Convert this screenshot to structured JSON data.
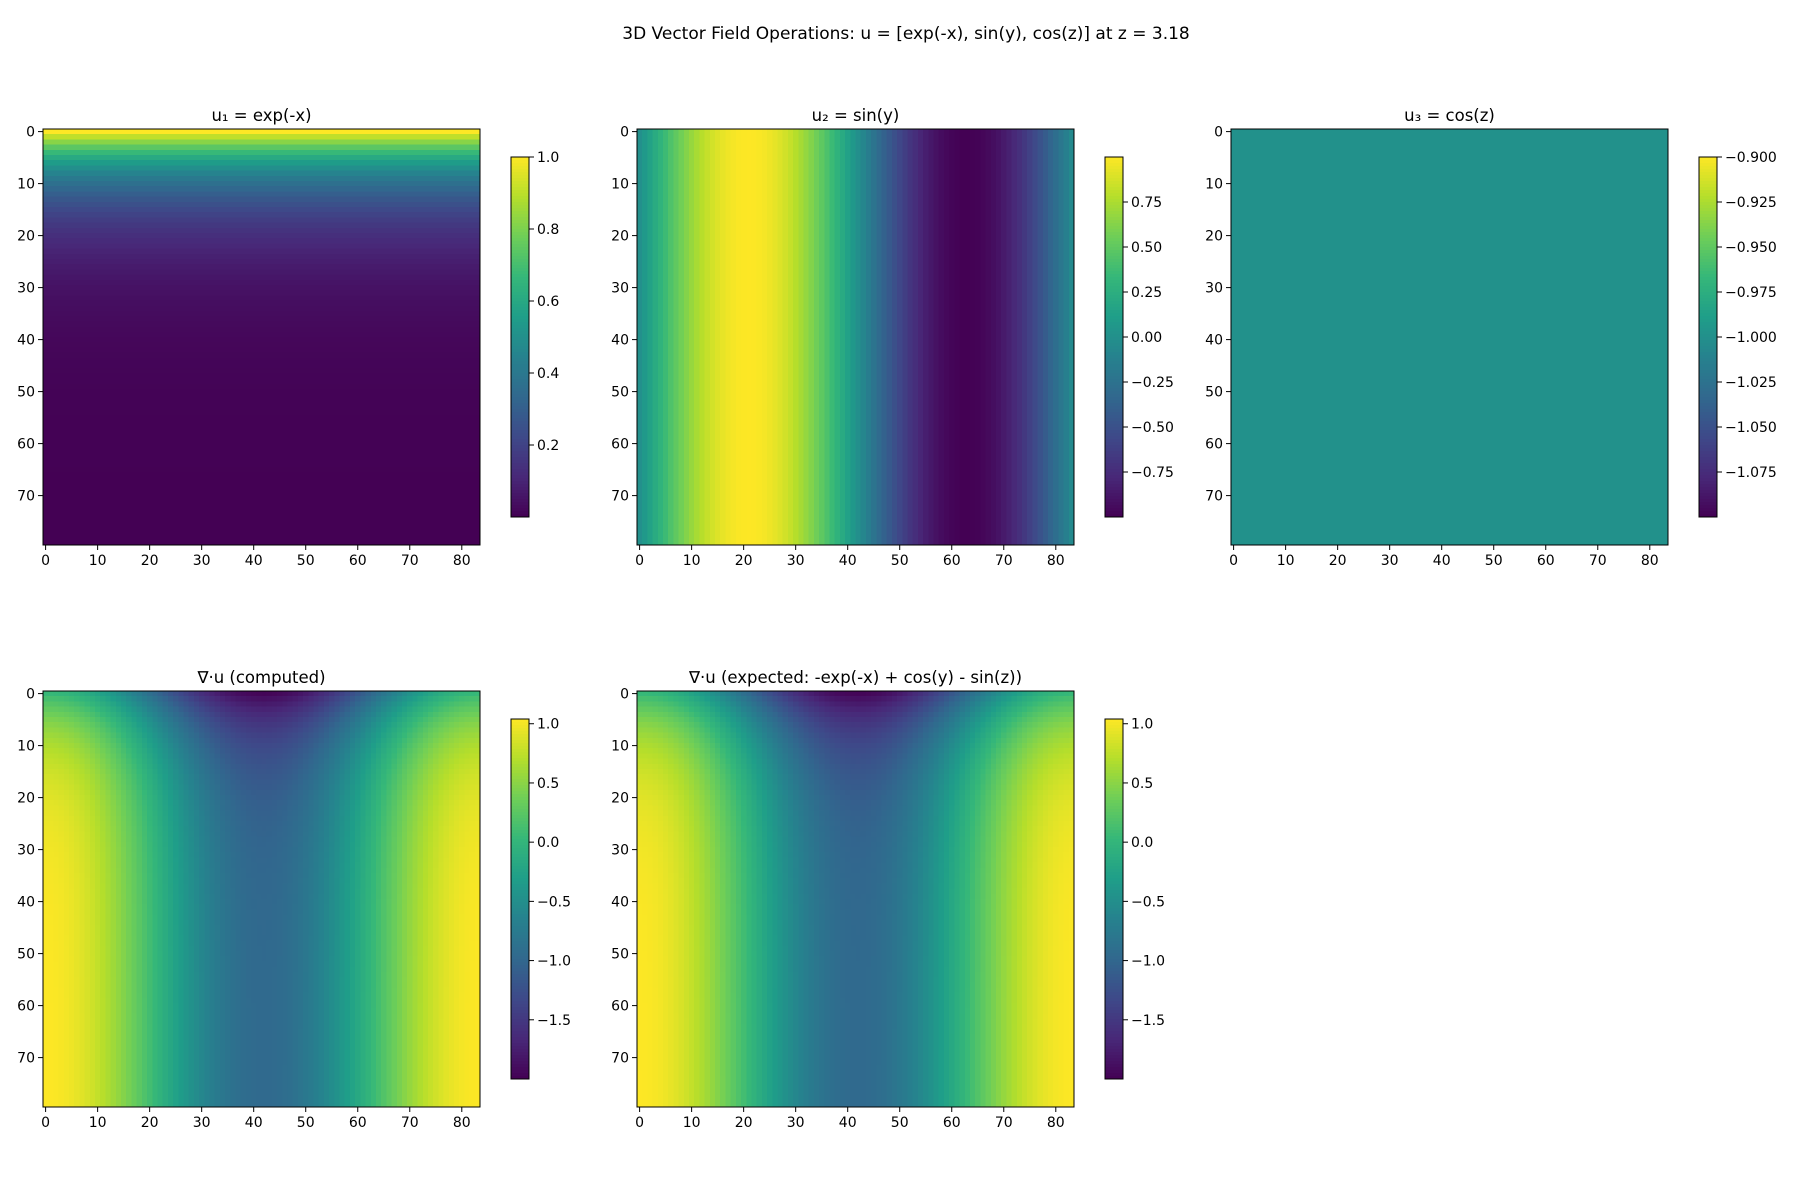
{
  "figure": {
    "title": "3D Vector Field Operations: u = [exp(-x), sin(y), cos(z)] at z = 3.18"
  },
  "colormap": {
    "name": "viridis",
    "stops": [
      "#440154",
      "#482878",
      "#3e4989",
      "#31688e",
      "#26828e",
      "#1f9e89",
      "#35b779",
      "#6ece58",
      "#b5de2b",
      "#fde725"
    ]
  },
  "chart_data": [
    {
      "type": "heatmap",
      "title": "u₁ = exp(-x)",
      "field": "exp(-x)",
      "x": {
        "n": 84,
        "ticks": [
          0,
          10,
          20,
          30,
          40,
          50,
          60,
          70,
          80
        ]
      },
      "y": {
        "n": 80,
        "ticks": [
          0,
          10,
          20,
          30,
          40,
          50,
          60,
          70
        ]
      },
      "vmin": 0.0,
      "vmax": 1.0,
      "colorbar_ticks": [
        "1.0",
        "0.8",
        "0.6",
        "0.4",
        "0.2"
      ],
      "colorbar_tick_values": [
        1.0,
        0.8,
        0.6,
        0.4,
        0.2
      ]
    },
    {
      "type": "heatmap",
      "title": "u₂ = sin(y)",
      "field": "sin(y)",
      "x": {
        "n": 84,
        "ticks": [
          0,
          10,
          20,
          30,
          40,
          50,
          60,
          70,
          80
        ]
      },
      "y": {
        "n": 80,
        "ticks": [
          0,
          10,
          20,
          30,
          40,
          50,
          60,
          70
        ]
      },
      "vmin": -1.0,
      "vmax": 1.0,
      "colorbar_ticks": [
        "0.75",
        "0.50",
        "0.25",
        "0.00",
        "−0.25",
        "−0.50",
        "−0.75"
      ],
      "colorbar_tick_values": [
        0.75,
        0.5,
        0.25,
        0.0,
        -0.25,
        -0.5,
        -0.75
      ]
    },
    {
      "type": "heatmap",
      "title": "u₃ = cos(z)",
      "field": "cos(z)",
      "constant_value": -0.9995,
      "x": {
        "n": 84,
        "ticks": [
          0,
          10,
          20,
          30,
          40,
          50,
          60,
          70,
          80
        ]
      },
      "y": {
        "n": 80,
        "ticks": [
          0,
          10,
          20,
          30,
          40,
          50,
          60,
          70
        ]
      },
      "vmin": -1.1,
      "vmax": -0.9,
      "colorbar_ticks": [
        "−0.900",
        "−0.925",
        "−0.950",
        "−0.975",
        "−1.000",
        "−1.025",
        "−1.050",
        "−1.075"
      ],
      "colorbar_tick_values": [
        -0.9,
        -0.925,
        -0.95,
        -0.975,
        -1.0,
        -1.025,
        -1.05,
        -1.075
      ]
    },
    {
      "type": "heatmap",
      "title": "∇·u (computed)",
      "field": "-exp(-x) + cos(y) - sin(z)",
      "x": {
        "n": 84,
        "ticks": [
          0,
          10,
          20,
          30,
          40,
          50,
          60,
          70,
          80
        ]
      },
      "y": {
        "n": 80,
        "ticks": [
          0,
          10,
          20,
          30,
          40,
          50,
          60,
          70
        ]
      },
      "vmin": -2.0,
      "vmax": 1.04,
      "colorbar_ticks": [
        "1.0",
        "0.5",
        "0.0",
        "−0.5",
        "−1.0",
        "−1.5"
      ],
      "colorbar_tick_values": [
        1.0,
        0.5,
        0.0,
        -0.5,
        -1.0,
        -1.5
      ]
    },
    {
      "type": "heatmap",
      "title": "∇·u (expected: -exp(-x) + cos(y) - sin(z))",
      "field": "-exp(-x) + cos(y) - sin(z)",
      "x": {
        "n": 84,
        "ticks": [
          0,
          10,
          20,
          30,
          40,
          50,
          60,
          70,
          80
        ]
      },
      "y": {
        "n": 80,
        "ticks": [
          0,
          10,
          20,
          30,
          40,
          50,
          60,
          70
        ]
      },
      "vmin": -2.0,
      "vmax": 1.04,
      "colorbar_ticks": [
        "1.0",
        "0.5",
        "0.0",
        "−0.5",
        "−1.0",
        "−1.5"
      ],
      "colorbar_tick_values": [
        1.0,
        0.5,
        0.0,
        -0.5,
        -1.0,
        -1.5
      ]
    }
  ]
}
